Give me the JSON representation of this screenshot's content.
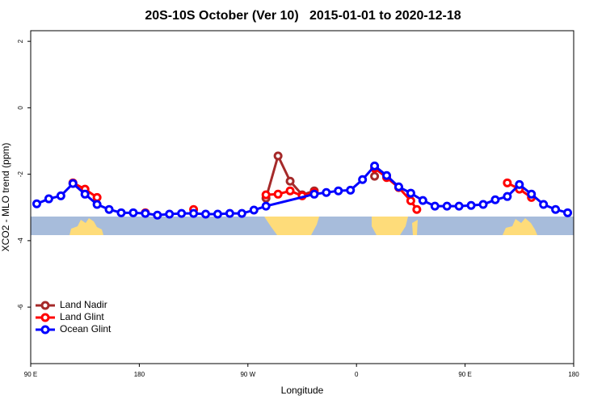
{
  "chart_data": {
    "type": "line",
    "title": "20S-10S October (Ver 10)   2015-01-01 to 2020-12-18",
    "x_label": "Longitude",
    "y_label": "XCO2 - MLO trend (ppm)",
    "xlim": [
      90,
      540
    ],
    "ylim": [
      -7.7,
      2.32
    ],
    "xticks": [
      {
        "value": 90,
        "label": "90 E"
      },
      {
        "value": 180,
        "label": "180"
      },
      {
        "value": 270,
        "label": "90 W"
      },
      {
        "value": 360,
        "label": "0"
      },
      {
        "value": 450,
        "label": "90 E"
      },
      {
        "value": 540,
        "label": "180"
      }
    ],
    "yticks": [
      2,
      0,
      -2,
      -4,
      -6
    ],
    "legend": "bottom-left",
    "series": [
      {
        "name": "Land Nadir",
        "color": "#a52a2a",
        "x": [
          285,
          295,
          305,
          315,
          325,
          335,
          375
        ],
        "values": [
          -2.72,
          -1.45,
          -2.21,
          -2.62,
          -2.5,
          null,
          -2.06
        ]
      },
      {
        "name": "Land Glint",
        "color": "#ff0000",
        "x": [
          125,
          135,
          145,
          155,
          185,
          195,
          225,
          235,
          285,
          295,
          305,
          315,
          325,
          335,
          375,
          385,
          395,
          405,
          410,
          420,
          485,
          495,
          505
        ],
        "values": [
          -2.26,
          -2.45,
          -2.7,
          null,
          -3.16,
          null,
          -3.06,
          null,
          -2.62,
          -2.6,
          -2.5,
          -2.65,
          -2.55,
          null,
          -1.82,
          -2.1,
          -2.4,
          -2.8,
          -3.06,
          null,
          -2.26,
          -2.45,
          -2.7
        ]
      },
      {
        "name": "Ocean Glint",
        "color": "#0000ff",
        "x": [
          95,
          105,
          115,
          125,
          135,
          145,
          155,
          165,
          175,
          185,
          195,
          205,
          215,
          225,
          235,
          245,
          255,
          265,
          275,
          285,
          325,
          335,
          345,
          355,
          365,
          375,
          385,
          395,
          405,
          415,
          425,
          435,
          445,
          455,
          465,
          475,
          485,
          495,
          505,
          515,
          525,
          535
        ],
        "values": [
          -2.89,
          -2.74,
          -2.65,
          -2.28,
          -2.6,
          -2.91,
          -3.06,
          -3.16,
          -3.16,
          -3.18,
          -3.23,
          -3.2,
          -3.18,
          -3.18,
          -3.2,
          -3.2,
          -3.18,
          -3.18,
          -3.08,
          -2.96,
          -2.6,
          -2.55,
          -2.5,
          -2.48,
          -2.16,
          -1.75,
          -2.04,
          -2.38,
          -2.57,
          -2.79,
          -2.96,
          -2.96,
          -2.96,
          -2.94,
          -2.91,
          -2.77,
          -2.67,
          -2.31,
          -2.6,
          -2.91,
          -3.06,
          -3.16
        ]
      }
    ]
  }
}
